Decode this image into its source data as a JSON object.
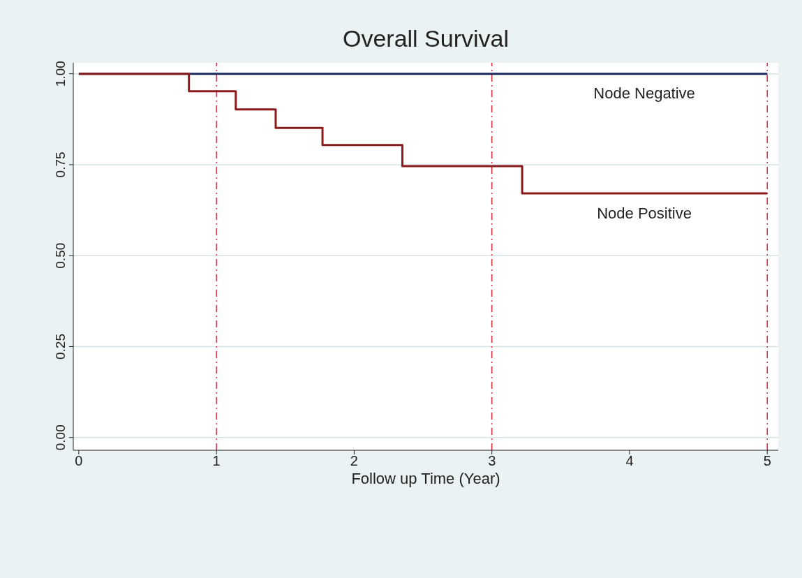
{
  "chart_data": {
    "type": "step",
    "title": "Overall Survival",
    "xlabel": "Follow up Time (Year)",
    "xlim": [
      -0.04,
      5.08
    ],
    "xticks": [
      0,
      1,
      2,
      3,
      4,
      5
    ],
    "ylim": [
      -0.035,
      1.03
    ],
    "yticks": [
      {
        "value": 0,
        "label": "0.00"
      },
      {
        "value": 0.25,
        "label": "0.25"
      },
      {
        "value": 0.5,
        "label": "0.50"
      },
      {
        "value": 0.75,
        "label": "0.75"
      },
      {
        "value": 1,
        "label": "1.00"
      }
    ],
    "grid": "y",
    "legend": false,
    "marker": "none",
    "line_style": "solid",
    "series": [
      {
        "name": "Node Negative",
        "color": "#1a2a5e",
        "x": [
          0,
          5
        ],
        "values": [
          1,
          1
        ]
      },
      {
        "name": "Node Positive",
        "color": "#8b1a1a",
        "x": [
          0,
          0.8,
          1.14,
          1.43,
          1.77,
          2.35,
          3.22,
          5
        ],
        "values": [
          1,
          0.952,
          0.902,
          0.851,
          0.804,
          0.746,
          0.671,
          0.671
        ]
      }
    ],
    "ref_lines": [
      {
        "axis": "x",
        "value": 1,
        "color": "#d62b3b",
        "line_style": "dashed"
      },
      {
        "axis": "x",
        "value": 3,
        "color": "#d62b3b",
        "line_style": "dashed"
      },
      {
        "axis": "x",
        "value": 5,
        "color": "#d62b3b",
        "line_style": "dashed"
      }
    ]
  }
}
